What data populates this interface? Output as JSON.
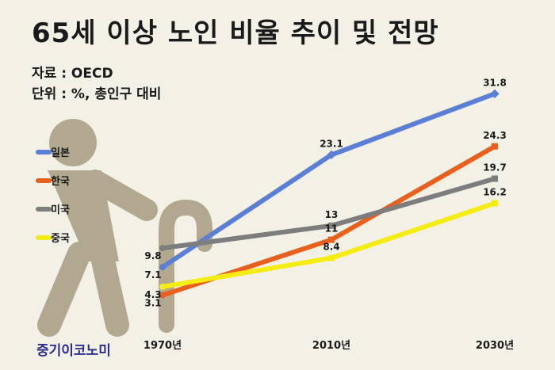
{
  "title": "65세 이상 노인 비율 추이 및 전망",
  "source": "자료 : OECD",
  "unit": "단위 : %, 총인구 대비",
  "brand": "중기이코노미",
  "chart_data": {
    "type": "line",
    "categories": [
      "1970년",
      "2010년",
      "2030년"
    ],
    "ylim": [
      0,
      35
    ],
    "grid": false,
    "legend_position": "left",
    "series": [
      {
        "name": "일본",
        "color": "#5b7fd4",
        "values": [
          7.1,
          23.1,
          31.8
        ],
        "labels": [
          "7.1",
          "23.1",
          "31.8"
        ]
      },
      {
        "name": "한국",
        "color": "#e8601c",
        "values": [
          3.1,
          11,
          24.3
        ],
        "labels": [
          "3.1",
          "11",
          "24.3"
        ]
      },
      {
        "name": "미국",
        "color": "#7d7d7d",
        "values": [
          9.8,
          13,
          19.7
        ],
        "labels": [
          "9.8",
          "13",
          "19.7"
        ]
      },
      {
        "name": "중국",
        "color": "#f5ec14",
        "values": [
          4.3,
          8.4,
          16.2
        ],
        "labels": [
          "4.3",
          "8.4",
          "16.2"
        ]
      }
    ]
  }
}
